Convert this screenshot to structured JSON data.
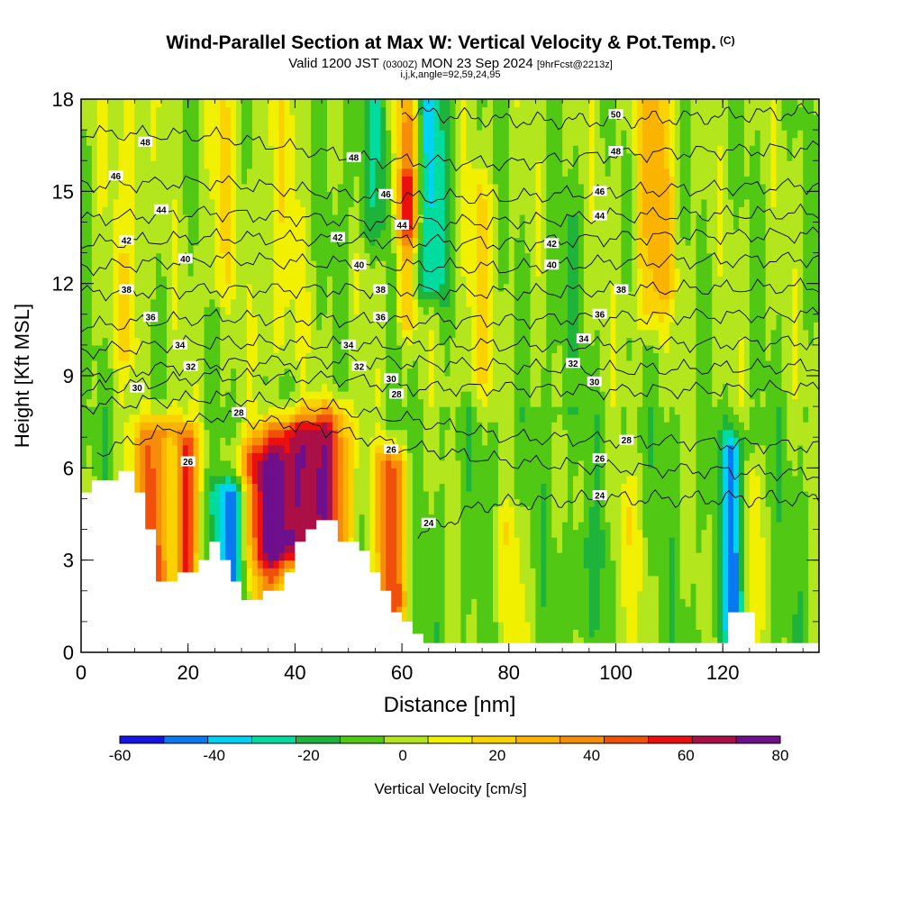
{
  "titles": {
    "main": "Wind-Parallel Section at Max W: Vertical Velocity & Pot.Temp.",
    "copyright": "(C)",
    "valid_prefix": "Valid 1200 JST",
    "valid_z": "(0300Z)",
    "valid_date": "MON 23 Sep 2024",
    "valid_fcst": "[9hrFcst@2213z]",
    "indices": "i,j,k,angle=92,59,24,95"
  },
  "colorbar": {
    "label": "Vertical Velocity [cm/s]",
    "tick_labels": [
      "-60",
      "-40",
      "-20",
      "0",
      "20",
      "40",
      "60",
      "80"
    ],
    "colors": [
      "#1414e6",
      "#0a78f0",
      "#00d2f5",
      "#00dca0",
      "#1eb43c",
      "#50c814",
      "#b4e61e",
      "#f0f000",
      "#fad200",
      "#fab400",
      "#f58c0a",
      "#f0500a",
      "#eb0f0f",
      "#aa0f46",
      "#6e0f8c"
    ]
  },
  "chart_data": {
    "type": "heatmap",
    "title": "Wind-Parallel Section at Max W: Vertical Velocity & Pot.Temp.",
    "xlabel": "Distance [nm]",
    "ylabel": "Height [Kft MSL]",
    "xlim": [
      0,
      138
    ],
    "ylim": [
      0,
      18
    ],
    "x_ticks": [
      "0",
      "20",
      "40",
      "60",
      "80",
      "100",
      "120"
    ],
    "y_ticks": [
      "0",
      "3",
      "6",
      "9",
      "12",
      "15",
      "18"
    ],
    "colorbar_range": [
      -60,
      80
    ],
    "colorbar_step": 10,
    "terrain": [
      [
        0,
        5.2
      ],
      [
        2,
        5.6
      ],
      [
        7,
        5.9
      ],
      [
        10,
        5.2
      ],
      [
        12,
        4.0
      ],
      [
        14,
        2.3
      ],
      [
        16,
        2.3
      ],
      [
        18,
        2.6
      ],
      [
        20,
        2.6
      ],
      [
        22,
        3.0
      ],
      [
        24,
        3.6
      ],
      [
        26,
        3.0
      ],
      [
        28,
        2.3
      ],
      [
        30,
        1.7
      ],
      [
        32,
        1.7
      ],
      [
        34,
        2.0
      ],
      [
        36,
        2.0
      ],
      [
        38,
        2.6
      ],
      [
        40,
        3.6
      ],
      [
        42,
        4.0
      ],
      [
        44,
        4.3
      ],
      [
        46,
        4.3
      ],
      [
        48,
        3.6
      ],
      [
        50,
        3.6
      ],
      [
        52,
        3.3
      ],
      [
        54,
        2.6
      ],
      [
        56,
        2.0
      ],
      [
        58,
        1.3
      ],
      [
        60,
        1.0
      ],
      [
        62,
        0.6
      ],
      [
        64,
        0.3
      ],
      [
        67,
        0.3
      ],
      [
        70,
        0.3
      ],
      [
        118,
        0.3
      ],
      [
        121,
        1.3
      ],
      [
        124,
        1.3
      ],
      [
        126,
        0.3
      ],
      [
        138,
        0.3
      ]
    ],
    "w_columns": [
      {
        "x": 15,
        "w": 5,
        "z0": 2.5,
        "z1": 7.0,
        "amp": 62
      },
      {
        "x": 17,
        "w": 2,
        "z0": 2.5,
        "z1": 6.5,
        "amp": -38
      },
      {
        "x": 19.5,
        "w": 2,
        "z0": 2.5,
        "z1": 6.5,
        "amp": 50
      },
      {
        "x": 28,
        "w": 4,
        "z0": 2.0,
        "z1": 5.0,
        "amp": -52
      },
      {
        "x": 33.5,
        "w": 5,
        "z0": 2.0,
        "z1": 6.0,
        "amp": 45
      },
      {
        "x": 40,
        "w": 7,
        "z0": 3.5,
        "z1": 7.0,
        "amp": 75
      },
      {
        "x": 47,
        "w": 4,
        "z0": 4.0,
        "z1": 7.5,
        "amp": 38
      },
      {
        "x": 58,
        "w": 3,
        "z0": 1.5,
        "z1": 6.0,
        "amp": 55
      },
      {
        "x": 61,
        "w": 3,
        "z0": 14.0,
        "z1": 18.0,
        "amp": 52
      },
      {
        "x": 61,
        "w": 2,
        "z0": 11.0,
        "z1": 15.0,
        "amp": 28
      },
      {
        "x": 65,
        "w": 3,
        "z0": 12.0,
        "z1": 18.0,
        "amp": -35
      },
      {
        "x": 57,
        "w": 7,
        "z0": 14.0,
        "z1": 18.0,
        "amp": -18
      },
      {
        "x": 26,
        "w": 3,
        "z0": 12.0,
        "z1": 18.0,
        "amp": 15
      },
      {
        "x": 37,
        "w": 4,
        "z0": 10.0,
        "z1": 18.0,
        "amp": 12
      },
      {
        "x": 9,
        "w": 3,
        "z0": 10.0,
        "z1": 18.0,
        "amp": 14
      },
      {
        "x": 106,
        "w": 3,
        "z0": 11.0,
        "z1": 18.0,
        "amp": 22
      },
      {
        "x": 109,
        "w": 3,
        "z0": 12.0,
        "z1": 18.0,
        "amp": 18
      },
      {
        "x": 122,
        "w": 2,
        "z0": 1.0,
        "z1": 6.5,
        "amp": -45
      },
      {
        "x": 125,
        "w": 2,
        "z0": 1.0,
        "z1": 5.5,
        "amp": 18
      },
      {
        "x": 95,
        "w": 3,
        "z0": 1.0,
        "z1": 3.5,
        "amp": -12
      },
      {
        "x": 80,
        "w": 3,
        "z0": 0.3,
        "z1": 4.0,
        "amp": 14
      },
      {
        "x": 102,
        "w": 3,
        "z0": 0.3,
        "z1": 5.0,
        "amp": 15
      },
      {
        "x": 90,
        "w": 3,
        "z0": 8.0,
        "z1": 14.0,
        "amp": -10
      },
      {
        "x": 74,
        "w": 3,
        "z0": 9.0,
        "z1": 15.0,
        "amp": 16
      }
    ],
    "theta_contours": [
      {
        "level": 24,
        "z": [
          {
            "x": 0,
            "z": null
          },
          {
            "x": 58,
            "z": null
          },
          {
            "x": 63,
            "z": 3.8
          },
          {
            "x": 75,
            "z": 4.8
          },
          {
            "x": 95,
            "z": 5.0
          },
          {
            "x": 138,
            "z": 5.0
          }
        ]
      },
      {
        "level": 26,
        "z": [
          {
            "x": 3,
            "z": 6.5
          },
          {
            "x": 25,
            "z": 7.7
          },
          {
            "x": 45,
            "z": 7.3
          },
          {
            "x": 60,
            "z": 6.7
          },
          {
            "x": 80,
            "z": 6.2
          },
          {
            "x": 100,
            "z": 6.0
          },
          {
            "x": 138,
            "z": 5.8
          }
        ]
      },
      {
        "level": 28,
        "z": [
          {
            "x": 0,
            "z": 8.0
          },
          {
            "x": 25,
            "z": 8.3
          },
          {
            "x": 45,
            "z": 8.0
          },
          {
            "x": 60,
            "z": 7.6
          },
          {
            "x": 80,
            "z": 7.0
          },
          {
            "x": 100,
            "z": 6.9
          },
          {
            "x": 138,
            "z": 6.7
          }
        ]
      },
      {
        "level": 30,
        "z": [
          {
            "x": 0,
            "z": 8.5
          },
          {
            "x": 25,
            "z": 9.0
          },
          {
            "x": 50,
            "z": 8.9
          },
          {
            "x": 60,
            "z": 8.6
          },
          {
            "x": 80,
            "z": 8.6
          },
          {
            "x": 100,
            "z": 8.5
          },
          {
            "x": 138,
            "z": 8.6
          }
        ]
      },
      {
        "level": 32,
        "z": [
          {
            "x": 0,
            "z": 9.0
          },
          {
            "x": 25,
            "z": 9.4
          },
          {
            "x": 50,
            "z": 9.5
          },
          {
            "x": 80,
            "z": 9.3
          },
          {
            "x": 100,
            "z": 9.2
          },
          {
            "x": 138,
            "z": 9.3
          }
        ]
      },
      {
        "level": 34,
        "z": [
          {
            "x": 0,
            "z": 9.8
          },
          {
            "x": 25,
            "z": 10.1
          },
          {
            "x": 50,
            "z": 10.0
          },
          {
            "x": 80,
            "z": 10.0
          },
          {
            "x": 100,
            "z": 10.0
          },
          {
            "x": 138,
            "z": 10.1
          }
        ]
      },
      {
        "level": 36,
        "z": [
          {
            "x": 0,
            "z": 10.6
          },
          {
            "x": 25,
            "z": 10.9
          },
          {
            "x": 55,
            "z": 10.8
          },
          {
            "x": 80,
            "z": 10.8
          },
          {
            "x": 100,
            "z": 10.9
          },
          {
            "x": 138,
            "z": 11.0
          }
        ]
      },
      {
        "level": 38,
        "z": [
          {
            "x": 0,
            "z": 11.7
          },
          {
            "x": 25,
            "z": 11.8
          },
          {
            "x": 55,
            "z": 11.8
          },
          {
            "x": 80,
            "z": 11.7
          },
          {
            "x": 100,
            "z": 11.8
          },
          {
            "x": 138,
            "z": 11.9
          }
        ]
      },
      {
        "level": 40,
        "z": [
          {
            "x": 0,
            "z": 12.5
          },
          {
            "x": 25,
            "z": 12.8
          },
          {
            "x": 55,
            "z": 12.6
          },
          {
            "x": 80,
            "z": 12.5
          },
          {
            "x": 100,
            "z": 12.7
          },
          {
            "x": 138,
            "z": 12.8
          }
        ]
      },
      {
        "level": 42,
        "z": [
          {
            "x": 0,
            "z": 13.3
          },
          {
            "x": 25,
            "z": 13.5
          },
          {
            "x": 55,
            "z": 13.4
          },
          {
            "x": 80,
            "z": 13.3
          },
          {
            "x": 100,
            "z": 13.5
          },
          {
            "x": 138,
            "z": 13.6
          }
        ]
      },
      {
        "level": 44,
        "z": [
          {
            "x": 0,
            "z": 14.1
          },
          {
            "x": 25,
            "z": 14.3
          },
          {
            "x": 55,
            "z": 14.0
          },
          {
            "x": 80,
            "z": 14.0
          },
          {
            "x": 100,
            "z": 14.2
          },
          {
            "x": 138,
            "z": 14.3
          }
        ]
      },
      {
        "level": 46,
        "z": [
          {
            "x": 0,
            "z": 15.2
          },
          {
            "x": 25,
            "z": 15.3
          },
          {
            "x": 55,
            "z": 14.8
          },
          {
            "x": 80,
            "z": 14.8
          },
          {
            "x": 100,
            "z": 15.0
          },
          {
            "x": 138,
            "z": 15.2
          }
        ]
      },
      {
        "level": 48,
        "z": [
          {
            "x": 0,
            "z": 16.9
          },
          {
            "x": 25,
            "z": 16.8
          },
          {
            "x": 55,
            "z": 16.0
          },
          {
            "x": 80,
            "z": 15.9
          },
          {
            "x": 100,
            "z": 16.2
          },
          {
            "x": 138,
            "z": 16.4
          }
        ]
      },
      {
        "level": 50,
        "z": [
          {
            "x": 60,
            "z": 17.6
          },
          {
            "x": 80,
            "z": 17.3
          },
          {
            "x": 100,
            "z": 17.3
          },
          {
            "x": 138,
            "z": 17.6
          }
        ]
      }
    ],
    "contour_labels": [
      {
        "text": "48",
        "x": 12,
        "z": 16.6
      },
      {
        "text": "46",
        "x": 6.5,
        "z": 15.5
      },
      {
        "text": "44",
        "x": 15,
        "z": 14.4
      },
      {
        "text": "42",
        "x": 8.5,
        "z": 13.4
      },
      {
        "text": "40",
        "x": 19.5,
        "z": 12.8
      },
      {
        "text": "38",
        "x": 8.5,
        "z": 11.8
      },
      {
        "text": "36",
        "x": 13,
        "z": 10.9
      },
      {
        "text": "34",
        "x": 18.5,
        "z": 10.0
      },
      {
        "text": "32",
        "x": 20.5,
        "z": 9.3
      },
      {
        "text": "30",
        "x": 10.5,
        "z": 8.6
      },
      {
        "text": "28",
        "x": 29.5,
        "z": 7.8
      },
      {
        "text": "26",
        "x": 20,
        "z": 6.2
      },
      {
        "text": "48",
        "x": 51,
        "z": 16.1
      },
      {
        "text": "46",
        "x": 57,
        "z": 14.9
      },
      {
        "text": "44",
        "x": 60,
        "z": 13.9
      },
      {
        "text": "42",
        "x": 48,
        "z": 13.5
      },
      {
        "text": "40",
        "x": 52,
        "z": 12.6
      },
      {
        "text": "38",
        "x": 56,
        "z": 11.8
      },
      {
        "text": "36",
        "x": 56,
        "z": 10.9
      },
      {
        "text": "34",
        "x": 50,
        "z": 10.0
      },
      {
        "text": "32",
        "x": 52,
        "z": 9.3
      },
      {
        "text": "30",
        "x": 58,
        "z": 8.9
      },
      {
        "text": "28",
        "x": 59,
        "z": 8.4
      },
      {
        "text": "26",
        "x": 58,
        "z": 6.6
      },
      {
        "text": "24",
        "x": 65,
        "z": 4.2
      },
      {
        "text": "50",
        "x": 100,
        "z": 17.5
      },
      {
        "text": "48",
        "x": 100,
        "z": 16.3
      },
      {
        "text": "46",
        "x": 97,
        "z": 15.0
      },
      {
        "text": "44",
        "x": 97,
        "z": 14.2
      },
      {
        "text": "42",
        "x": 88,
        "z": 13.3
      },
      {
        "text": "40",
        "x": 88,
        "z": 12.6
      },
      {
        "text": "38",
        "x": 101,
        "z": 11.8
      },
      {
        "text": "36",
        "x": 97,
        "z": 11.0
      },
      {
        "text": "34",
        "x": 94,
        "z": 10.2
      },
      {
        "text": "32",
        "x": 92,
        "z": 9.4
      },
      {
        "text": "30",
        "x": 96,
        "z": 8.8
      },
      {
        "text": "28",
        "x": 102,
        "z": 6.9
      },
      {
        "text": "26",
        "x": 97,
        "z": 6.3
      },
      {
        "text": "24",
        "x": 97,
        "z": 5.1
      }
    ]
  }
}
